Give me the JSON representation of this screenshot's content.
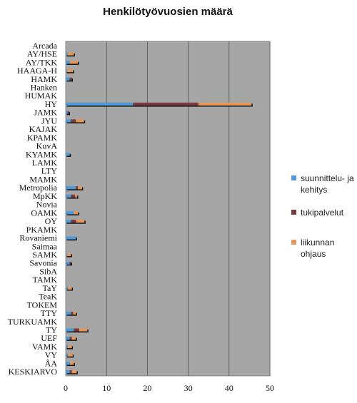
{
  "chart_data": {
    "type": "bar",
    "orientation": "horizontal",
    "stacked": true,
    "title": "Henkilötyövuosien määrä",
    "xlim": [
      0,
      50
    ],
    "xticks": [
      "0",
      "10",
      "20",
      "30",
      "40",
      "50"
    ],
    "categories": [
      "Arcada",
      "AY/HSE",
      "AY/TKK",
      "HAAGA-H",
      "HAMK",
      "Hanken",
      "HUMAK",
      "HY",
      "JAMK",
      "JYU",
      "KAJAK",
      "KPAMK",
      "KuvA",
      "KYAMK",
      "LAMK",
      "LTY",
      "MAMK",
      "Metropolia",
      "MpKK",
      "Novia",
      "OAMK",
      "OY",
      "PKAMK",
      "Rovaniemi",
      "Saimaa",
      "SAMK",
      "Savonia",
      "SibA",
      "TAMK",
      "TaY",
      "TeaK",
      "TOKEM",
      "TTY",
      "TURKUAMK",
      "TY",
      "UEF",
      "VAMK",
      "VY",
      "ÅA",
      "KESKIARVO"
    ],
    "series": [
      {
        "name": "suunnittelu- ja kehitys",
        "color": "#4f9ad6",
        "values": [
          0,
          0.5,
          1,
          0.3,
          1,
          0,
          0,
          16.5,
          0.5,
          1.3,
          0,
          0,
          0,
          1,
          0,
          0,
          0,
          2.5,
          1.3,
          0,
          2,
          1.3,
          0,
          2.5,
          0,
          0.3,
          1,
          0,
          0,
          0.5,
          0,
          0,
          1.3,
          0,
          2,
          1,
          0.5,
          0.5,
          1,
          1
        ]
      },
      {
        "name": "tukipalvelut",
        "color": "#7a3b40",
        "values": [
          0,
          0,
          0,
          0,
          0.5,
          0,
          0,
          16,
          0.3,
          1.2,
          0,
          0,
          0,
          0,
          0,
          0,
          0,
          0.5,
          1,
          0,
          0,
          1.3,
          0,
          0,
          0,
          0,
          0.3,
          0,
          0,
          0,
          0,
          0,
          0.5,
          0,
          1.3,
          0.5,
          0,
          0,
          0,
          0.5
        ]
      },
      {
        "name": "liikunnan ohjaus",
        "color": "#e3975b",
        "values": [
          0,
          1.5,
          2,
          1.5,
          0,
          0,
          0,
          13,
          0,
          2,
          0,
          0,
          0,
          0,
          0,
          0,
          0,
          1,
          0.5,
          0,
          1,
          2,
          0,
          0,
          0,
          1,
          0,
          0,
          0,
          1,
          0,
          0,
          0.7,
          0,
          2,
          1,
          1,
          1.2,
          1,
          1.2
        ]
      }
    ],
    "legend_position": "right",
    "grid": true,
    "plot_background": "#a6a6a6"
  }
}
